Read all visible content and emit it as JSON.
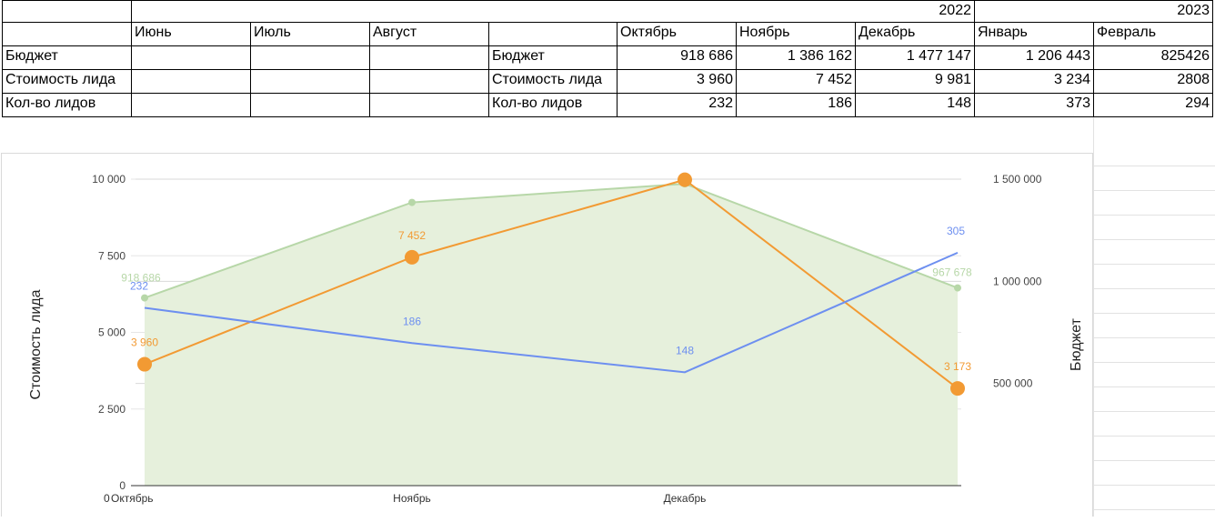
{
  "table": {
    "years": [
      "2022",
      "2023"
    ],
    "months_left": [
      "Июнь",
      "Июль",
      "Август"
    ],
    "months_right": [
      "Октябрь",
      "Ноябрь",
      "Декабрь",
      "Январь",
      "Февраль"
    ],
    "row_labels": [
      "Бюджет",
      "Стоимость лида",
      "Кол-во лидов"
    ],
    "rows": [
      [
        "918 686",
        "1 386 162",
        "1 477 147",
        "1 206 443",
        "825426"
      ],
      [
        "3 960",
        "7 452",
        "9 981",
        "3 234",
        "2808"
      ],
      [
        "232",
        "186",
        "148",
        "373",
        "294"
      ]
    ]
  },
  "chart_data": {
    "type": "line",
    "categories": [
      "Октябрь",
      "Ноябрь",
      "Декабрь",
      ""
    ],
    "xtick_zero": "0",
    "ylabel": "Стоимость лида",
    "ylabel_right": "Бюджет",
    "ylim": [
      0,
      10000
    ],
    "yticks": [
      "0",
      "2 500",
      "5 000",
      "7 500",
      "10 000"
    ],
    "ylim_right": [
      0,
      1500000
    ],
    "yticks_right": [
      "500 000",
      "1 000 000",
      "1 500 000"
    ],
    "grid": true,
    "series": [
      {
        "kind": "area",
        "axis": "right",
        "color": "#b7d7a8",
        "fill": "#e6f0dc",
        "values": [
          918686,
          1386162,
          1477147,
          967678
        ],
        "labels": [
          "918 686",
          "",
          "",
          "967 678"
        ]
      },
      {
        "kind": "line",
        "axis": "left",
        "color": "#f29a33",
        "values": [
          3960,
          7452,
          9981,
          3173
        ],
        "labels": [
          "3 960",
          "7 452",
          "",
          "3 173"
        ]
      },
      {
        "kind": "line",
        "axis": "left",
        "color": "#6d8ff0",
        "values": [
          5800,
          4650,
          3700,
          7600
        ],
        "labels": [
          "232",
          "186",
          "148",
          "305"
        ]
      }
    ]
  }
}
